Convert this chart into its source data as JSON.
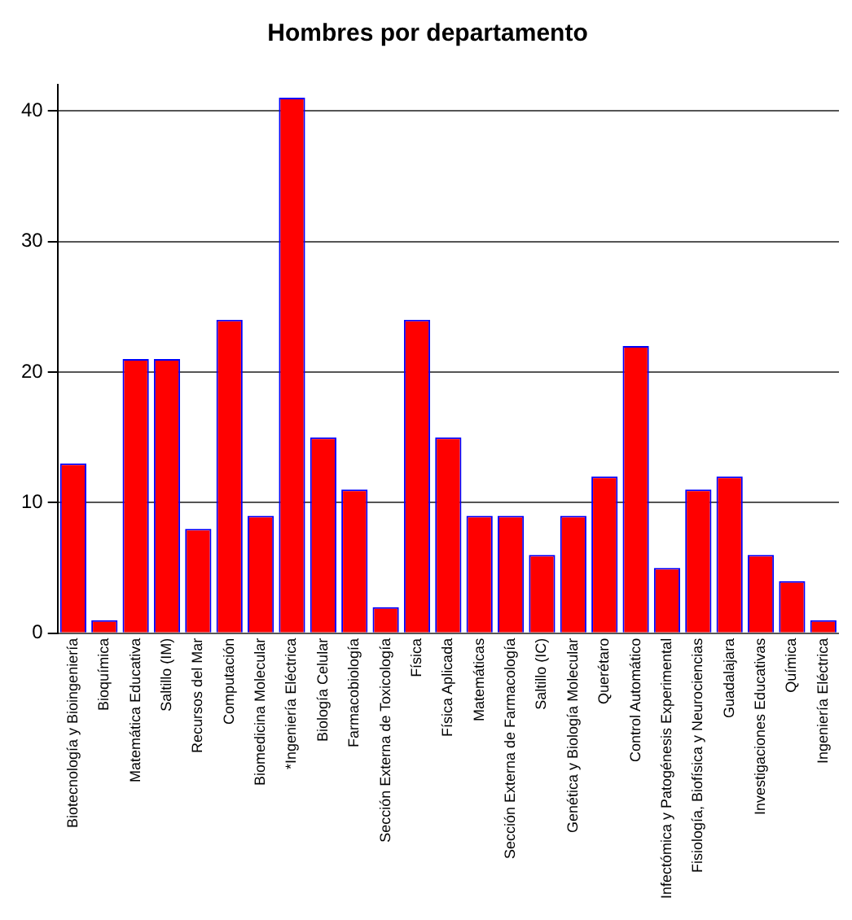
{
  "chart_data": {
    "type": "bar",
    "title": "Hombres por departamento",
    "categories": [
      "Biotecnología y Bioingeniería",
      "Bioquímica",
      "Matemática Educativa",
      "Saltillo (IM)",
      "Recursos del Mar",
      "Computación",
      "Biomedicina Molecular",
      "*Ingeniería Eléctrica",
      "Biología Celular",
      "Farmacobiología",
      "Sección Externa de Toxicología",
      "Física",
      "Física Aplicada",
      "Matemáticas",
      "Sección Externa de Farmacología",
      "Saltillo (IC)",
      "Genética y Biología Molecular",
      "Querétaro",
      "Control Automático",
      "Infectómica y Patogénesis Experimental",
      "Fisiología, Biofísica y Neurociencias",
      "Guadalajara",
      "Investigaciones Educativas",
      "Química",
      "Ingeniería Eléctrica"
    ],
    "series": [
      {
        "color": "#ff0000",
        "values": [
          13,
          1,
          21,
          21,
          8,
          24,
          9,
          41,
          15,
          11,
          2,
          24,
          15,
          9,
          9,
          6,
          9,
          12,
          22,
          5,
          11,
          12,
          6,
          4,
          1
        ]
      }
    ],
    "ylim": [
      0,
      42
    ],
    "yticks": [
      0,
      10,
      20,
      30,
      40
    ],
    "grid": "y"
  }
}
